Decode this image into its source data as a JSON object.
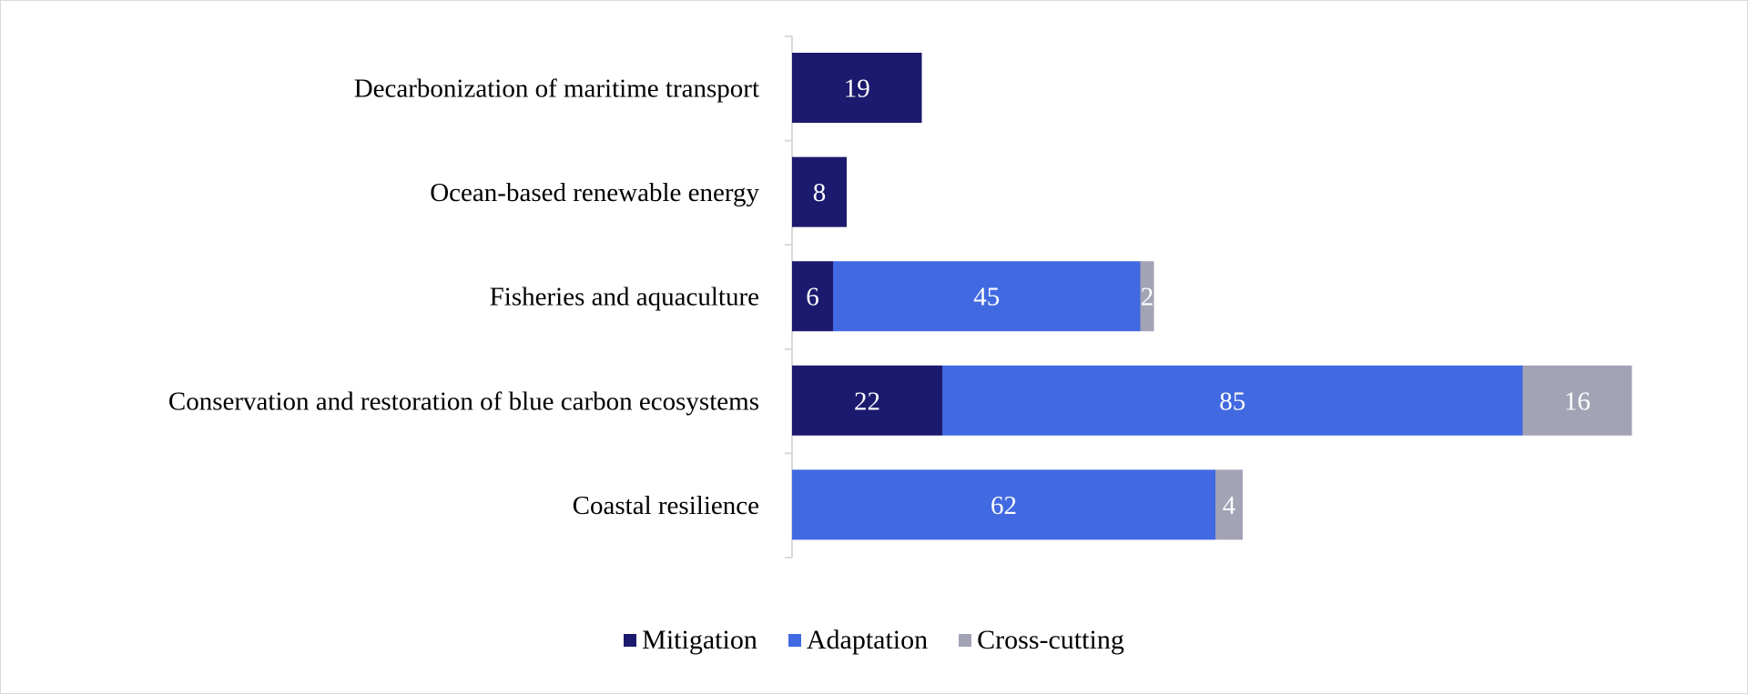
{
  "chart_data": {
    "type": "bar",
    "orientation": "horizontal",
    "stacked": true,
    "categories": [
      "Decarbonization of maritime transport",
      "Ocean-based renewable energy",
      "Fisheries and aquaculture",
      "Conservation and restoration of blue carbon ecosystems",
      "Coastal resilience"
    ],
    "series": [
      {
        "name": "Mitigation",
        "color": "#1b1a6e",
        "values": [
          19,
          8,
          6,
          22,
          0
        ]
      },
      {
        "name": "Adaptation",
        "color": "#4169e1",
        "values": [
          0,
          0,
          45,
          85,
          62
        ]
      },
      {
        "name": "Cross-cutting",
        "color": "#a2a3b5",
        "values": [
          0,
          0,
          2,
          16,
          4
        ]
      }
    ],
    "xlim": [
      0,
      125
    ],
    "grid": false,
    "data_labels": true,
    "legend_position": "bottom"
  }
}
